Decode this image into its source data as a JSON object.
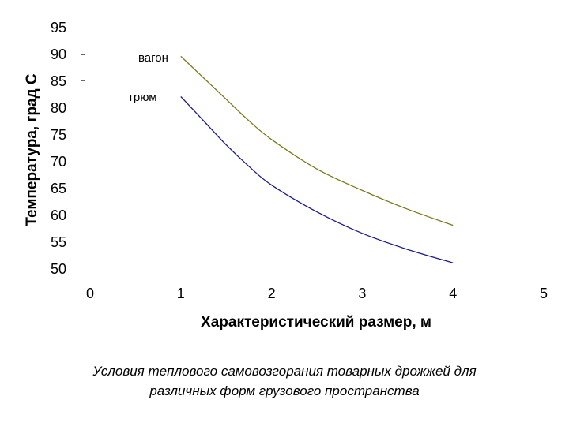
{
  "chart_data": {
    "type": "line",
    "xlabel": "Характеристический размер, м",
    "ylabel": "Температура, град С",
    "xlim": [
      0,
      5
    ],
    "ylim": [
      50,
      95
    ],
    "x_ticks": [
      "0",
      "1",
      "2",
      "3",
      "4",
      "5"
    ],
    "y_ticks": [
      "95",
      "90",
      "85",
      "80",
      "75",
      "70",
      "65",
      "60",
      "55",
      "50"
    ],
    "grid": false,
    "series": [
      {
        "name": "вагон",
        "color": "#7a7a1a",
        "x": [
          1,
          1.25,
          1.5,
          1.75,
          2,
          2.5,
          3,
          3.5,
          4
        ],
        "y": [
          89.5,
          85.5,
          81.5,
          77.5,
          74,
          68.5,
          64.5,
          61,
          58
        ]
      },
      {
        "name": "трюм",
        "color": "#1a1a8c",
        "x": [
          1,
          1.25,
          1.5,
          1.75,
          2,
          2.5,
          3,
          3.5,
          4
        ],
        "y": [
          82,
          77.5,
          73,
          69,
          65.5,
          60.5,
          56.5,
          53.5,
          51
        ]
      }
    ]
  },
  "caption_lines": [
    "Условия теплового самовозгорания товарных дрожжей для",
    "различных форм грузового пространства"
  ]
}
